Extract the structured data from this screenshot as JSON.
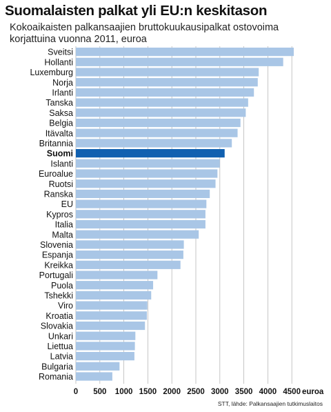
{
  "header": {
    "title": "Suomalaisten palkat yli EU:n keskitason",
    "subtitle": "Kokoaikaisten palkansaajien bruttokuukausipalkat ostovoima korjattuina vuonna 2011, euroa"
  },
  "footer": {
    "source": "STT, lähde: Palkansaajien tutkimuslaitos"
  },
  "colors": {
    "bar": "#a9c6e6",
    "highlight": "#1160b0",
    "grid": "#b8b8b8"
  },
  "chart_data": {
    "type": "bar",
    "orientation": "horizontal",
    "title": "Suomalaisten palkat yli EU:n keskitason",
    "subtitle": "Kokoaikaisten palkansaajien bruttokuukausipalkat ostovoima korjattuina vuonna 2011, euroa",
    "xlabel": "euroa",
    "xlim": [
      0,
      4600
    ],
    "xticks": [
      0,
      500,
      1000,
      1500,
      2000,
      2500,
      3000,
      3500,
      4000,
      4500
    ],
    "grid": "vertical",
    "highlight": "Suomi",
    "categories": [
      "Sveitsi",
      "Hollanti",
      "Luxemburg",
      "Norja",
      "Irlanti",
      "Tanska",
      "Saksa",
      "Belgia",
      "Itävalta",
      "Britannia",
      "Suomi",
      "Islanti",
      "Euroalue",
      "Ruotsi",
      "Ranska",
      "EU",
      "Kypros",
      "Italia",
      "Malta",
      "Slovenia",
      "Espanja",
      "Kreikka",
      "Portugali",
      "Puola",
      "Tshekki",
      "Viro",
      "Kroatia",
      "Slovakia",
      "Unkari",
      "Liettua",
      "Latvia",
      "Bulgaria",
      "Romania"
    ],
    "values": [
      4540,
      4320,
      3810,
      3790,
      3710,
      3590,
      3540,
      3430,
      3370,
      3250,
      3100,
      3000,
      2950,
      2910,
      2790,
      2720,
      2700,
      2700,
      2560,
      2250,
      2240,
      2180,
      1700,
      1610,
      1570,
      1490,
      1480,
      1440,
      1240,
      1230,
      1220,
      910,
      760
    ]
  }
}
